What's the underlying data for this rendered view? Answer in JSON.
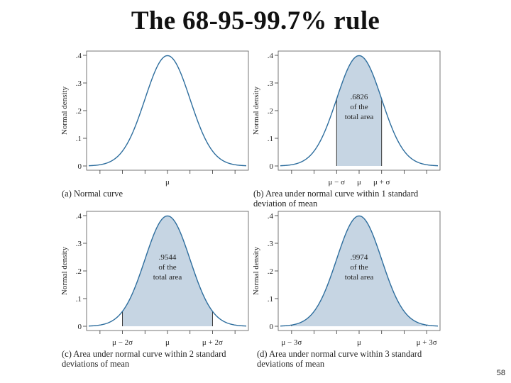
{
  "slide": {
    "title": "The 68-95-99.7% rule",
    "page_number": "58"
  },
  "colors": {
    "curve": "#2e6e9e",
    "fill": "#c6d5e3",
    "axis": "#333333"
  },
  "chart_data": [
    {
      "type": "area",
      "title": "",
      "caption": [
        "(a) Normal curve"
      ],
      "ylabel": "Normal density",
      "xlabel": "",
      "ylim": [
        0,
        0.4
      ],
      "xlim": [
        -3.5,
        3.5
      ],
      "y_ticks": [
        ".4",
        ".3",
        ".2",
        ".1",
        "0"
      ],
      "y_tick_values": [
        0.4,
        0.3,
        0.2,
        0.1,
        0
      ],
      "x_tick_values": [
        -3,
        -2,
        -1,
        0,
        1,
        2,
        3
      ],
      "x_labels": [
        {
          "x": 0,
          "text": "μ"
        }
      ],
      "shade_range": null,
      "annotation": [],
      "series": [
        {
          "name": "Normal density",
          "function": "standard normal pdf",
          "peak": 0.3989
        }
      ]
    },
    {
      "type": "area",
      "title": "",
      "caption": [
        "(b) Area under normal curve within 1 standard",
        "deviation of mean"
      ],
      "ylabel": "Normal density",
      "xlabel": "",
      "ylim": [
        0,
        0.4
      ],
      "xlim": [
        -3.5,
        3.5
      ],
      "y_ticks": [
        ".4",
        ".3",
        ".2",
        ".1",
        "0"
      ],
      "y_tick_values": [
        0.4,
        0.3,
        0.2,
        0.1,
        0
      ],
      "x_tick_values": [
        -3,
        -2,
        -1,
        0,
        1,
        2,
        3
      ],
      "x_labels": [
        {
          "x": -1,
          "text": "μ − σ"
        },
        {
          "x": 0,
          "text": "μ"
        },
        {
          "x": 1,
          "text": "μ + σ"
        }
      ],
      "shade_range": [
        -1,
        1
      ],
      "shaded_area": 0.6826,
      "annotation": [
        ".6826",
        "of the",
        "total area"
      ],
      "series": [
        {
          "name": "Normal density",
          "function": "standard normal pdf",
          "peak": 0.3989
        }
      ]
    },
    {
      "type": "area",
      "title": "",
      "caption": [
        "(c) Area under normal curve within 2 standard",
        "deviations of mean"
      ],
      "ylabel": "Normal density",
      "xlabel": "",
      "ylim": [
        0,
        0.4
      ],
      "xlim": [
        -3.5,
        3.5
      ],
      "y_ticks": [
        ".4",
        ".3",
        ".2",
        ".1",
        "0"
      ],
      "y_tick_values": [
        0.4,
        0.3,
        0.2,
        0.1,
        0
      ],
      "x_tick_values": [
        -3,
        -2,
        -1,
        0,
        1,
        2,
        3
      ],
      "x_labels": [
        {
          "x": -2,
          "text": "μ − 2σ"
        },
        {
          "x": 0,
          "text": "μ"
        },
        {
          "x": 2,
          "text": "μ + 2σ"
        }
      ],
      "shade_range": [
        -2,
        2
      ],
      "shaded_area": 0.9544,
      "annotation": [
        ".9544",
        "of the",
        "total area"
      ],
      "series": [
        {
          "name": "Normal density",
          "function": "standard normal pdf",
          "peak": 0.3989
        }
      ]
    },
    {
      "type": "area",
      "title": "",
      "caption": [
        "(d) Area under normal curve within 3 standard",
        "deviations of mean"
      ],
      "ylabel": "Normal density",
      "xlabel": "",
      "ylim": [
        0,
        0.4
      ],
      "xlim": [
        -3.5,
        3.5
      ],
      "y_ticks": [
        ".4",
        ".3",
        ".2",
        ".1",
        "0"
      ],
      "y_tick_values": [
        0.4,
        0.3,
        0.2,
        0.1,
        0
      ],
      "x_tick_values": [
        -3,
        -2,
        -1,
        0,
        1,
        2,
        3
      ],
      "x_labels": [
        {
          "x": -3,
          "text": "μ − 3σ"
        },
        {
          "x": 0,
          "text": "μ"
        },
        {
          "x": 3,
          "text": "μ + 3σ"
        }
      ],
      "shade_range": [
        -3,
        3
      ],
      "shaded_area": 0.9974,
      "annotation": [
        ".9974",
        "of the",
        "total area"
      ],
      "series": [
        {
          "name": "Normal density",
          "function": "standard normal pdf",
          "peak": 0.3989
        }
      ]
    }
  ]
}
